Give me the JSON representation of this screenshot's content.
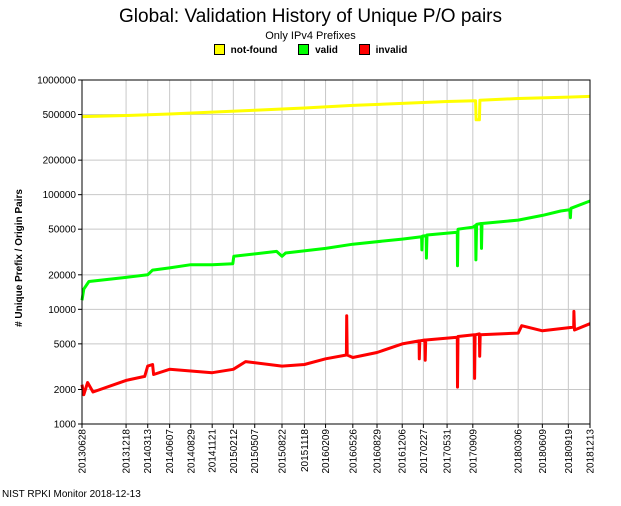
{
  "chart_data": {
    "type": "line",
    "title": "Global: Validation History of Unique P/O pairs",
    "subtitle": "Only IPv4 Prefixes",
    "ylabel": "# Unique Prefix / Origin Pairs",
    "xlabel": "",
    "yscale": "log",
    "ylim": [
      1000,
      1000000
    ],
    "ytick_values": [
      1000,
      2000,
      5000,
      10000,
      20000,
      50000,
      100000,
      200000,
      500000,
      1000000
    ],
    "ytick_labels": [
      "1000",
      "2000",
      "5000",
      "10000",
      "20000",
      "50000",
      "100000",
      "200000",
      "500000",
      "1000000"
    ],
    "xlim": [
      "2013-06-28",
      "2018-12-13"
    ],
    "xtick_labels": [
      "20130628",
      "20131218",
      "20140313",
      "20140607",
      "20140829",
      "20141121",
      "20150212",
      "20150507",
      "20150822",
      "20151118",
      "20160209",
      "20160526",
      "20160829",
      "20161206",
      "20170227",
      "20170531",
      "20170909",
      "20180306",
      "20180609",
      "20180919",
      "20181213"
    ],
    "xtick_dates": [
      "2013-06-28",
      "2013-12-18",
      "2014-03-13",
      "2014-06-07",
      "2014-08-29",
      "2014-11-21",
      "2015-02-12",
      "2015-05-07",
      "2015-08-22",
      "2015-11-18",
      "2016-02-09",
      "2016-05-26",
      "2016-08-29",
      "2016-12-06",
      "2017-02-27",
      "2017-05-31",
      "2017-09-09",
      "2018-03-06",
      "2018-06-09",
      "2018-09-19",
      "2018-12-13"
    ],
    "grid": true,
    "legend_position": "top-center",
    "series": [
      {
        "name": "not-found",
        "color": "#ffff00",
        "points": [
          [
            "2013-06-28",
            480000
          ],
          [
            "2013-12-18",
            490000
          ],
          [
            "2014-06-07",
            505000
          ],
          [
            "2014-11-21",
            525000
          ],
          [
            "2015-05-07",
            545000
          ],
          [
            "2015-11-18",
            570000
          ],
          [
            "2016-05-26",
            600000
          ],
          [
            "2016-12-06",
            625000
          ],
          [
            "2017-05-31",
            650000
          ],
          [
            "2017-09-20",
            660000
          ],
          [
            "2017-09-22",
            450000
          ],
          [
            "2017-10-05",
            450000
          ],
          [
            "2017-10-07",
            665000
          ],
          [
            "2018-03-06",
            690000
          ],
          [
            "2018-09-19",
            710000
          ],
          [
            "2018-12-13",
            720000
          ]
        ]
      },
      {
        "name": "valid",
        "color": "#00ff00",
        "points": [
          [
            "2013-06-28",
            12000
          ],
          [
            "2013-07-05",
            15000
          ],
          [
            "2013-07-25",
            17500
          ],
          [
            "2013-12-18",
            19000
          ],
          [
            "2014-03-13",
            20000
          ],
          [
            "2014-04-01",
            22000
          ],
          [
            "2014-06-07",
            23000
          ],
          [
            "2014-08-29",
            24500
          ],
          [
            "2014-11-21",
            24500
          ],
          [
            "2015-02-10",
            25000
          ],
          [
            "2015-02-14",
            29000
          ],
          [
            "2015-08-01",
            32000
          ],
          [
            "2015-08-22",
            29000
          ],
          [
            "2015-09-05",
            31000
          ],
          [
            "2016-02-09",
            34000
          ],
          [
            "2016-05-26",
            37000
          ],
          [
            "2016-12-06",
            41000
          ],
          [
            "2017-02-20",
            43000
          ],
          [
            "2017-02-21",
            33000
          ],
          [
            "2017-02-23",
            43500
          ],
          [
            "2017-03-10",
            44000
          ],
          [
            "2017-03-11",
            28000
          ],
          [
            "2017-03-13",
            44500
          ],
          [
            "2017-07-10",
            47000
          ],
          [
            "2017-07-11",
            24000
          ],
          [
            "2017-07-13",
            50000
          ],
          [
            "2017-09-09",
            52000
          ],
          [
            "2017-09-20",
            54000
          ],
          [
            "2017-09-21",
            27000
          ],
          [
            "2017-09-24",
            55000
          ],
          [
            "2017-10-12",
            56000
          ],
          [
            "2017-10-13",
            34000
          ],
          [
            "2017-10-15",
            56000
          ],
          [
            "2018-03-06",
            60000
          ],
          [
            "2018-06-09",
            66000
          ],
          [
            "2018-08-20",
            72000
          ],
          [
            "2018-09-25",
            74000
          ],
          [
            "2018-09-27",
            63000
          ],
          [
            "2018-09-29",
            76000
          ],
          [
            "2018-12-13",
            88000
          ]
        ]
      },
      {
        "name": "invalid",
        "color": "#ff0000",
        "points": [
          [
            "2013-06-28",
            2200
          ],
          [
            "2013-07-05",
            1800
          ],
          [
            "2013-07-20",
            2300
          ],
          [
            "2013-08-10",
            1900
          ],
          [
            "2013-12-18",
            2400
          ],
          [
            "2014-03-01",
            2600
          ],
          [
            "2014-03-13",
            3200
          ],
          [
            "2014-04-01",
            3300
          ],
          [
            "2014-04-05",
            2700
          ],
          [
            "2014-06-07",
            3000
          ],
          [
            "2014-08-29",
            2900
          ],
          [
            "2014-11-21",
            2800
          ],
          [
            "2015-02-12",
            3000
          ],
          [
            "2015-04-01",
            3500
          ],
          [
            "2015-08-22",
            3200
          ],
          [
            "2015-11-18",
            3300
          ],
          [
            "2016-02-09",
            3700
          ],
          [
            "2016-05-01",
            4000
          ],
          [
            "2016-05-02",
            8800
          ],
          [
            "2016-05-04",
            4000
          ],
          [
            "2016-05-26",
            3800
          ],
          [
            "2016-08-29",
            4200
          ],
          [
            "2016-12-06",
            5000
          ],
          [
            "2017-02-10",
            5300
          ],
          [
            "2017-02-11",
            3700
          ],
          [
            "2017-02-13",
            5300
          ],
          [
            "2017-03-05",
            5400
          ],
          [
            "2017-03-06",
            3600
          ],
          [
            "2017-03-08",
            5400
          ],
          [
            "2017-07-10",
            5700
          ],
          [
            "2017-07-11",
            2100
          ],
          [
            "2017-07-13",
            5800
          ],
          [
            "2017-09-15",
            6000
          ],
          [
            "2017-09-16",
            2500
          ],
          [
            "2017-09-18",
            6000
          ],
          [
            "2017-10-05",
            6100
          ],
          [
            "2017-10-06",
            3900
          ],
          [
            "2017-10-08",
            6000
          ],
          [
            "2018-03-06",
            6200
          ],
          [
            "2018-03-20",
            7200
          ],
          [
            "2018-06-09",
            6500
          ],
          [
            "2018-09-19",
            6900
          ],
          [
            "2018-10-10",
            7000
          ],
          [
            "2018-10-11",
            9600
          ],
          [
            "2018-10-13",
            6600
          ],
          [
            "2018-12-13",
            7500
          ]
        ]
      }
    ]
  },
  "footer": "NIST RPKI Monitor 2018-12-13"
}
